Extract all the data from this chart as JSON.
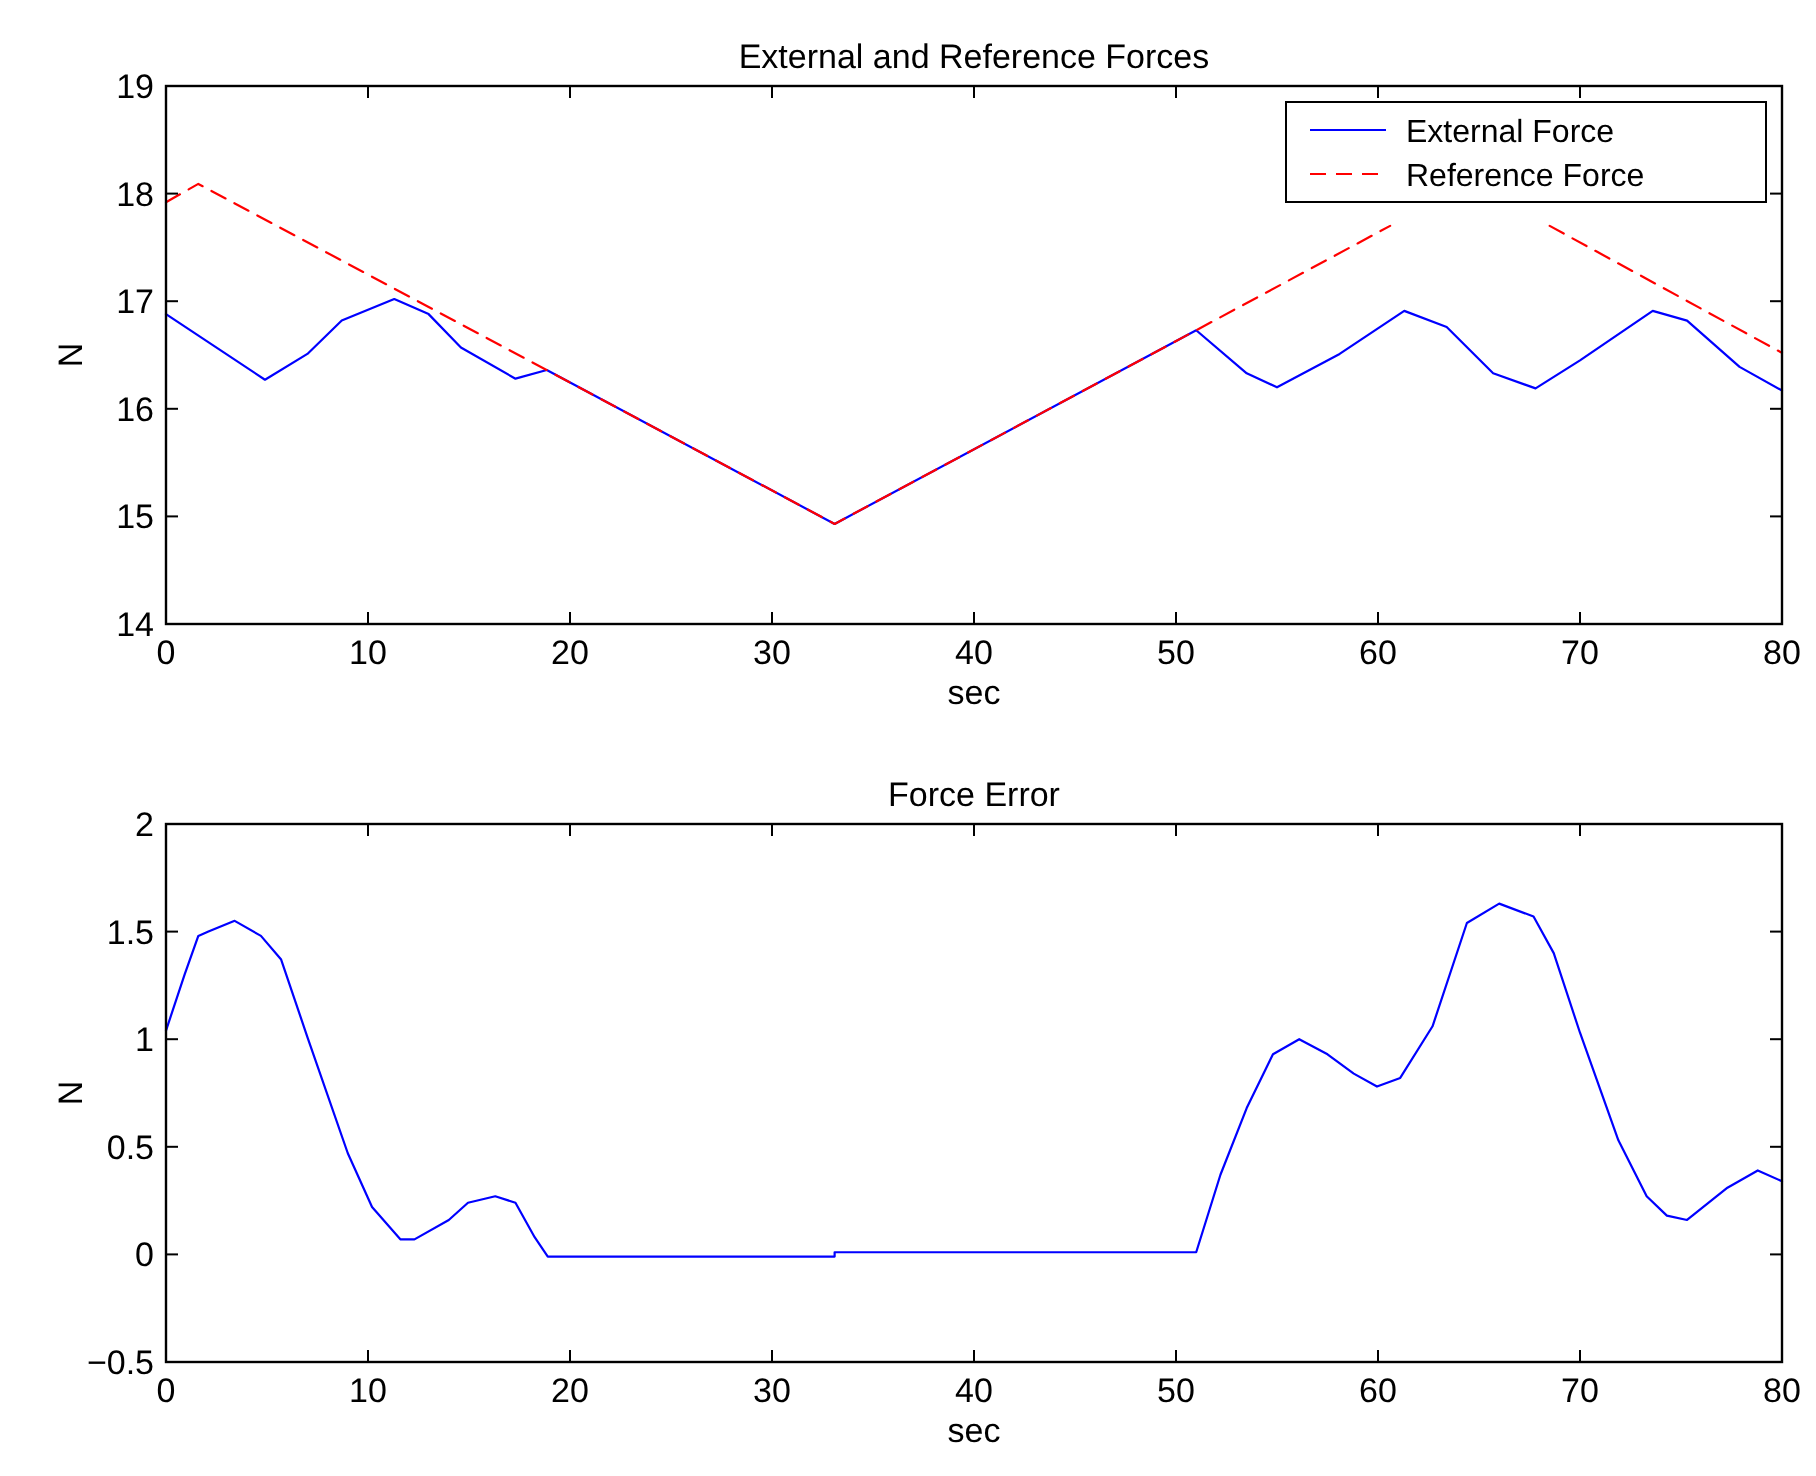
{
  "chart_data": [
    {
      "type": "line",
      "title": "External and Reference Forces",
      "xlabel": "sec",
      "ylabel": "N",
      "xlim": [
        0,
        80
      ],
      "xticks": [
        0,
        10,
        20,
        30,
        40,
        50,
        60,
        70,
        80
      ],
      "ylim": [
        14,
        19
      ],
      "yticks": [
        14,
        15,
        16,
        17,
        18,
        19
      ],
      "grid": false,
      "legend": "top right",
      "marker": "none",
      "series": [
        {
          "name": "External Force",
          "color": "#0000ff",
          "line_style": "solid",
          "x": [
            0,
            4.9,
            7.0,
            8.7,
            11.3,
            13.0,
            14.6,
            17.3,
            18.85,
            33.1,
            51,
            53.5,
            55.0,
            58.1,
            61.3,
            63.4,
            65.7,
            67.8,
            70.0,
            73.6,
            75.3,
            77.9,
            80
          ],
          "values": [
            16.88,
            16.27,
            16.51,
            16.82,
            17.02,
            16.88,
            16.57,
            16.28,
            16.36,
            14.93,
            16.73,
            16.33,
            16.2,
            16.51,
            16.91,
            16.76,
            16.33,
            16.19,
            16.45,
            16.91,
            16.82,
            16.39,
            16.17
          ]
        },
        {
          "name": "Reference Force",
          "color": "#ff0000",
          "line_style": "dashed",
          "x": [
            0,
            1.6,
            18.85,
            33.1,
            51,
            60.6,
            64.6,
            68.5,
            80
          ],
          "values": [
            17.92,
            18.09,
            16.36,
            14.93,
            16.73,
            17.7,
            null,
            17.7,
            16.52
          ]
        }
      ]
    },
    {
      "type": "line",
      "title": "Force Error",
      "xlabel": "sec",
      "ylabel": "N",
      "xlim": [
        0,
        80
      ],
      "xticks": [
        0,
        10,
        20,
        30,
        40,
        50,
        60,
        70,
        80
      ],
      "ylim": [
        -0.5,
        2
      ],
      "yticks": [
        {
          "value": -0.5,
          "label": "−0.5"
        },
        0,
        0.5,
        1,
        1.5,
        2
      ],
      "grid": false,
      "legend": false,
      "marker": "none",
      "series": [
        {
          "color": "#0000ff",
          "line_style": "solid",
          "x": [
            0,
            0.92,
            1.6,
            2.1,
            3.4,
            4.7,
            5.7,
            7.0,
            9.0,
            10.2,
            11.6,
            12.3,
            14.0,
            14.95,
            16.3,
            17.3,
            18.25,
            18.9,
            33.1,
            33.1,
            51.0,
            52.2,
            53.5,
            54.8,
            56.1,
            57.5,
            58.8,
            59.95,
            61.1,
            62.7,
            64.4,
            66.0,
            67.7,
            68.7,
            70.0,
            71.9,
            73.3,
            74.3,
            75.3,
            77.3,
            78.8,
            80
          ],
          "values": [
            1.04,
            1.3,
            1.48,
            1.5,
            1.55,
            1.48,
            1.37,
            1.01,
            0.47,
            0.22,
            0.07,
            0.07,
            0.16,
            0.24,
            0.27,
            0.24,
            0.08,
            -0.01,
            -0.01,
            0.01,
            0.01,
            0.37,
            0.68,
            0.93,
            1.0,
            0.93,
            0.84,
            0.78,
            0.82,
            1.06,
            1.54,
            1.63,
            1.57,
            1.4,
            1.03,
            0.53,
            0.27,
            0.18,
            0.16,
            0.31,
            0.39,
            0.34
          ]
        }
      ]
    }
  ]
}
